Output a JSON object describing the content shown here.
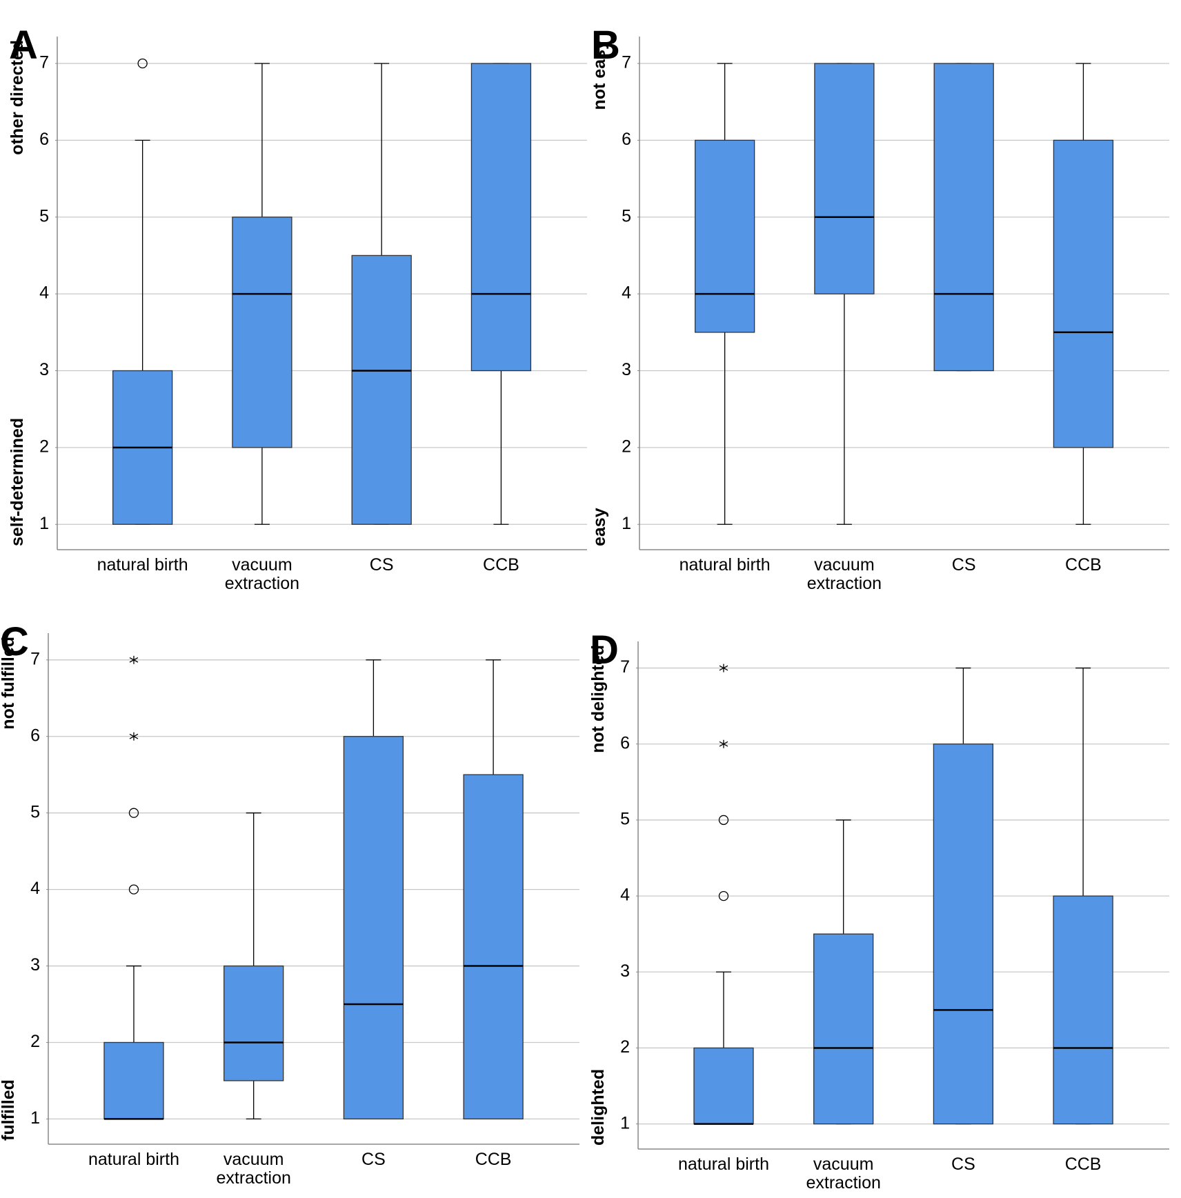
{
  "chart_data": [
    {
      "type": "box",
      "panel": "A",
      "y_label_top": "other directed",
      "y_label_bottom": "self-determined",
      "categories": [
        "natural birth",
        "vacuum extraction",
        "CS",
        "CCB"
      ],
      "color": "#5595e5",
      "grid": true,
      "ylim": [
        0.67,
        7.35
      ],
      "yticks": [
        1,
        2,
        3,
        4,
        5,
        6,
        7
      ],
      "boxes": [
        {
          "min": 1,
          "q1": 1,
          "median": 2,
          "q3": 3,
          "max": 6,
          "outliers": [
            7
          ],
          "outlier_symbols": [
            "circle"
          ]
        },
        {
          "min": 1,
          "q1": 2,
          "median": 4,
          "q3": 5,
          "max": 7,
          "outliers": [],
          "outlier_symbols": []
        },
        {
          "min": 1,
          "q1": 1,
          "median": 3,
          "q3": 4.5,
          "max": 7,
          "outliers": [],
          "outlier_symbols": []
        },
        {
          "min": 1,
          "q1": 3,
          "median": 4,
          "q3": 7,
          "max": 7,
          "outliers": [],
          "outlier_symbols": []
        }
      ]
    },
    {
      "type": "box",
      "panel": "B",
      "y_label_top": "not easy",
      "y_label_bottom": "easy",
      "categories": [
        "natural birth",
        "vacuum extraction",
        "CS",
        "CCB"
      ],
      "color": "#5595e5",
      "grid": true,
      "ylim": [
        0.67,
        7.35
      ],
      "yticks": [
        1,
        2,
        3,
        4,
        5,
        6,
        7
      ],
      "boxes": [
        {
          "min": 1,
          "q1": 3.5,
          "median": 4,
          "q3": 6,
          "max": 7,
          "outliers": [],
          "outlier_symbols": []
        },
        {
          "min": 1,
          "q1": 4,
          "median": 5,
          "q3": 7,
          "max": 7,
          "outliers": [],
          "outlier_symbols": []
        },
        {
          "min": 3,
          "q1": 3,
          "median": 4,
          "q3": 7,
          "max": 7,
          "outliers": [],
          "outlier_symbols": []
        },
        {
          "min": 1,
          "q1": 2,
          "median": 3.5,
          "q3": 6,
          "max": 7,
          "outliers": [],
          "outlier_symbols": []
        }
      ]
    },
    {
      "type": "box",
      "panel": "C",
      "y_label_top": "not fulfilled",
      "y_label_bottom": "fulfilled",
      "categories": [
        "natural birth",
        "vacuum extraction",
        "CS",
        "CCB"
      ],
      "color": "#5595e5",
      "grid": true,
      "ylim": [
        0.67,
        7.35
      ],
      "yticks": [
        1,
        2,
        3,
        4,
        5,
        6,
        7
      ],
      "boxes": [
        {
          "min": 1,
          "q1": 1,
          "median": 1,
          "q3": 2,
          "max": 3,
          "outliers": [
            4,
            5,
            6,
            7
          ],
          "outlier_symbols": [
            "circle",
            "circle",
            "star",
            "star"
          ]
        },
        {
          "min": 1,
          "q1": 1.5,
          "median": 2,
          "q3": 3,
          "max": 5,
          "outliers": [],
          "outlier_symbols": []
        },
        {
          "min": 1,
          "q1": 1,
          "median": 2.5,
          "q3": 6,
          "max": 7,
          "outliers": [],
          "outlier_symbols": []
        },
        {
          "min": 1,
          "q1": 1,
          "median": 3,
          "q3": 5.5,
          "max": 7,
          "outliers": [],
          "outlier_symbols": []
        }
      ]
    },
    {
      "type": "box",
      "panel": "D",
      "y_label_top": "not delighted",
      "y_label_bottom": "delighted",
      "categories": [
        "natural birth",
        "vacuum extraction",
        "CS",
        "CCB"
      ],
      "color": "#5595e5",
      "grid": true,
      "ylim": [
        0.67,
        7.35
      ],
      "yticks": [
        1,
        2,
        3,
        4,
        5,
        6,
        7
      ],
      "boxes": [
        {
          "min": 1,
          "q1": 1,
          "median": 1,
          "q3": 2,
          "max": 3,
          "outliers": [
            4,
            5,
            6,
            7
          ],
          "outlier_symbols": [
            "circle",
            "circle",
            "star",
            "star"
          ]
        },
        {
          "min": 1,
          "q1": 1,
          "median": 2,
          "q3": 3.5,
          "max": 5,
          "outliers": [],
          "outlier_symbols": []
        },
        {
          "min": 1,
          "q1": 1,
          "median": 2.5,
          "q3": 6,
          "max": 7,
          "outliers": [],
          "outlier_symbols": []
        },
        {
          "min": 1,
          "q1": 1,
          "median": 2,
          "q3": 4,
          "max": 7,
          "outliers": [],
          "outlier_symbols": []
        }
      ]
    }
  ]
}
